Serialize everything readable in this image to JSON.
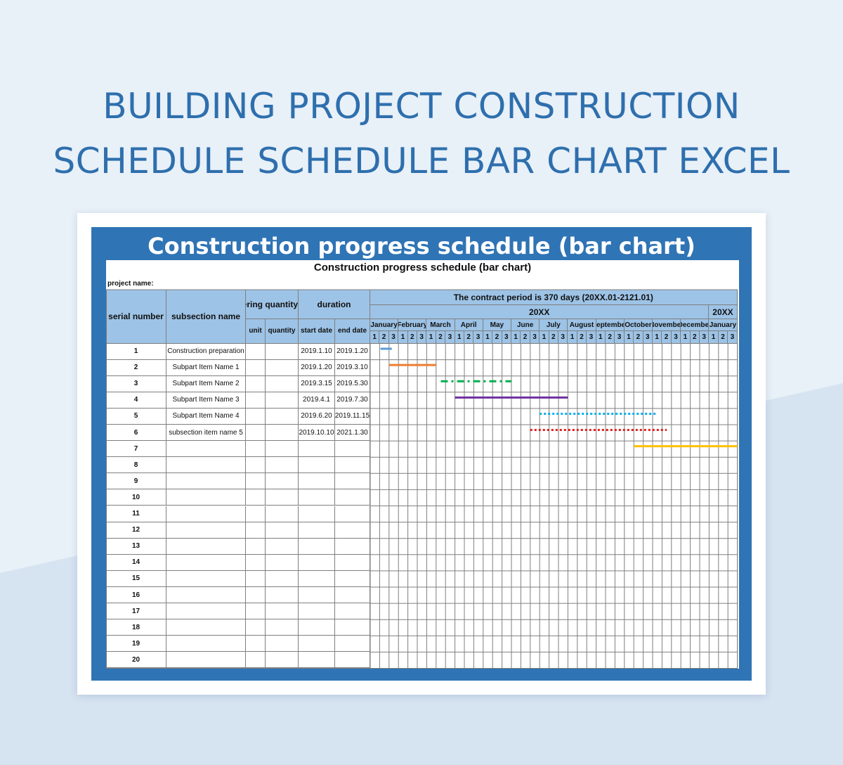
{
  "page": {
    "hero_title_line1": "BUILDING PROJECT CONSTRUCTION",
    "hero_title_line2": "SCHEDULE SCHEDULE BAR CHART EXCEL",
    "banner_title": "Construction progress schedule (bar chart)"
  },
  "sheet": {
    "title": "Construction progress schedule (bar chart)",
    "project_label": "project name:",
    "headers": {
      "serial": "serial number",
      "subsection": "subsection name",
      "quantity_group": "Engineering quantity",
      "unit": "unit",
      "quantity": "quantity",
      "duration": "duration",
      "start": "start date",
      "end": "end date",
      "contract": "The contract period is 370 days (20XX.01-2121.01)",
      "year1": "20XX",
      "year2": "20XX"
    },
    "months": [
      "January",
      "February",
      "March",
      "April",
      "May",
      "June",
      "July",
      "August",
      "September",
      "October",
      "November",
      "December",
      "January"
    ],
    "thirds": [
      "1",
      "2",
      "3"
    ],
    "rows": [
      {
        "n": "1",
        "name": "Construction preparation",
        "unit": "",
        "qty": "",
        "start": "2019.1.10",
        "end": "2019.1.20"
      },
      {
        "n": "2",
        "name": "Subpart Item Name 1",
        "unit": "",
        "qty": "",
        "start": "2019.1.20",
        "end": "2019.3.10"
      },
      {
        "n": "3",
        "name": "Subpart Item Name 2",
        "unit": "",
        "qty": "",
        "start": "2019.3.15",
        "end": "2019.5.30"
      },
      {
        "n": "4",
        "name": "Subpart Item Name 3",
        "unit": "",
        "qty": "",
        "start": "2019.4.1",
        "end": "2019.7.30"
      },
      {
        "n": "5",
        "name": "Subpart Item Name 4",
        "unit": "",
        "qty": "",
        "start": "2019.6.20",
        "end": "2019.11.15"
      },
      {
        "n": "6",
        "name": "subsection item name 5",
        "unit": "",
        "qty": "",
        "start": "2019.10.10",
        "end": "2021.1.30"
      },
      {
        "n": "7",
        "name": "",
        "unit": "",
        "qty": "",
        "start": "",
        "end": ""
      },
      {
        "n": "8",
        "name": "",
        "unit": "",
        "qty": "",
        "start": "",
        "end": ""
      },
      {
        "n": "9",
        "name": "",
        "unit": "",
        "qty": "",
        "start": "",
        "end": ""
      },
      {
        "n": "10",
        "name": "",
        "unit": "",
        "qty": "",
        "start": "",
        "end": ""
      },
      {
        "n": "11",
        "name": "",
        "unit": "",
        "qty": "",
        "start": "",
        "end": ""
      },
      {
        "n": "12",
        "name": "",
        "unit": "",
        "qty": "",
        "start": "",
        "end": ""
      },
      {
        "n": "13",
        "name": "",
        "unit": "",
        "qty": "",
        "start": "",
        "end": ""
      },
      {
        "n": "14",
        "name": "",
        "unit": "",
        "qty": "",
        "start": "",
        "end": ""
      },
      {
        "n": "15",
        "name": "",
        "unit": "",
        "qty": "",
        "start": "",
        "end": ""
      },
      {
        "n": "16",
        "name": "",
        "unit": "",
        "qty": "",
        "start": "",
        "end": ""
      },
      {
        "n": "17",
        "name": "",
        "unit": "",
        "qty": "",
        "start": "",
        "end": ""
      },
      {
        "n": "18",
        "name": "",
        "unit": "",
        "qty": "",
        "start": "",
        "end": ""
      },
      {
        "n": "19",
        "name": "",
        "unit": "",
        "qty": "",
        "start": "",
        "end": ""
      },
      {
        "n": "20",
        "name": "",
        "unit": "",
        "qty": "",
        "start": "",
        "end": ""
      }
    ],
    "gantt_bars": [
      {
        "row": 1,
        "from_period": 1.1,
        "to_period": 2.3,
        "color": "#5b9bd5",
        "style": "solid"
      },
      {
        "row": 2,
        "from_period": 2.0,
        "to_period": 7.0,
        "color": "#ed7d31",
        "style": "solid"
      },
      {
        "row": 3,
        "from_period": 7.5,
        "to_period": 15.0,
        "color": "#00b050",
        "style": "dashdot"
      },
      {
        "row": 4,
        "from_period": 9.0,
        "to_period": 21.0,
        "color": "#7030a0",
        "style": "solid"
      },
      {
        "row": 5,
        "from_period": 18.0,
        "to_period": 30.5,
        "color": "#00b0f0",
        "style": "dotted"
      },
      {
        "row": 6,
        "from_period": 17.0,
        "to_period": 31.5,
        "color": "#e02020",
        "style": "dotted"
      },
      {
        "row": 7,
        "from_period": 28.0,
        "to_period": 39.0,
        "color": "#ffc000",
        "style": "solid"
      }
    ]
  }
}
